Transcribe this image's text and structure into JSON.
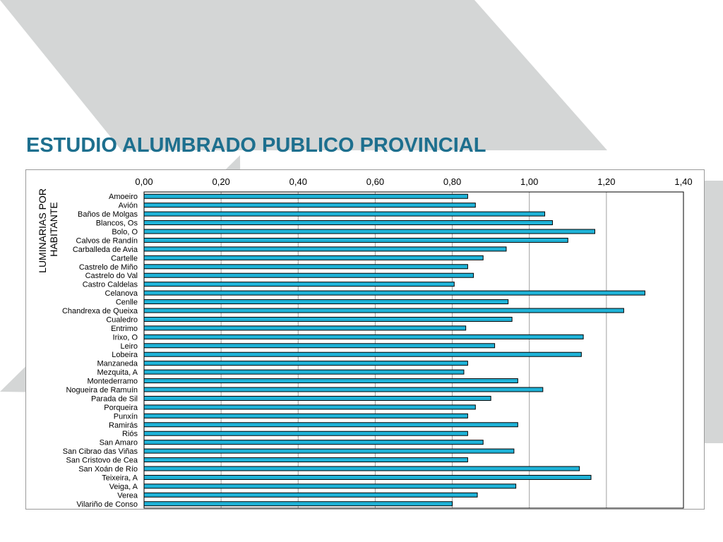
{
  "page": {
    "title": "ESTUDIO ALUMBRADO PUBLICO PROVINCIAL"
  },
  "colors": {
    "title": "#1d6f8e",
    "bar_fill": "#1fb3d8",
    "bar_stroke": "#000000",
    "background_shapes": "#d4d6d6"
  },
  "chart_data": {
    "type": "bar",
    "orientation": "horizontal",
    "ylabel": "LUMINARIAS POR HABITANTE",
    "ylabel_lines": [
      "LUMINARIAS POR",
      "HABITANTE"
    ],
    "xaxis_position": "top",
    "xlim": [
      0,
      1.4
    ],
    "xticks": [
      "0,00",
      "0,20",
      "0,40",
      "0,60",
      "0,80",
      "1,00",
      "1,20",
      "1,40"
    ],
    "grid": true,
    "legend": "none",
    "categories": [
      "Amoeiro",
      "Avión",
      "Baños de Molgas",
      "Blancos, Os",
      "Bolo, O",
      "Calvos de Randín",
      "Carballeda de Avia",
      "Cartelle",
      "Castrelo de Miño",
      "Castrelo do Val",
      "Castro Caldelas",
      "Celanova",
      "Cenlle",
      "Chandrexa de Queixa",
      "Cualedro",
      "Entrimo",
      "Irixo, O",
      "Leiro",
      "Lobeira",
      "Manzaneda",
      "Mezquita, A",
      "Montederramo",
      "Nogueira de Ramuín",
      "Parada de Sil",
      "Porqueira",
      "Punxín",
      "Ramirás",
      "Riós",
      "San Amaro",
      "San Cibrao das Viñas",
      "San Cristovo de Cea",
      "San Xoán de Río",
      "Teixeira, A",
      "Veiga, A",
      "Verea",
      "Vilariño de Conso"
    ],
    "values": [
      0.84,
      0.86,
      1.04,
      1.06,
      1.17,
      1.1,
      0.94,
      0.88,
      0.84,
      0.855,
      0.805,
      1.3,
      0.945,
      1.245,
      0.955,
      0.835,
      1.14,
      0.91,
      1.135,
      0.84,
      0.83,
      0.97,
      1.035,
      0.9,
      0.86,
      0.84,
      0.97,
      0.84,
      0.88,
      0.96,
      0.84,
      1.13,
      1.16,
      0.965,
      0.865,
      0.8
    ]
  }
}
